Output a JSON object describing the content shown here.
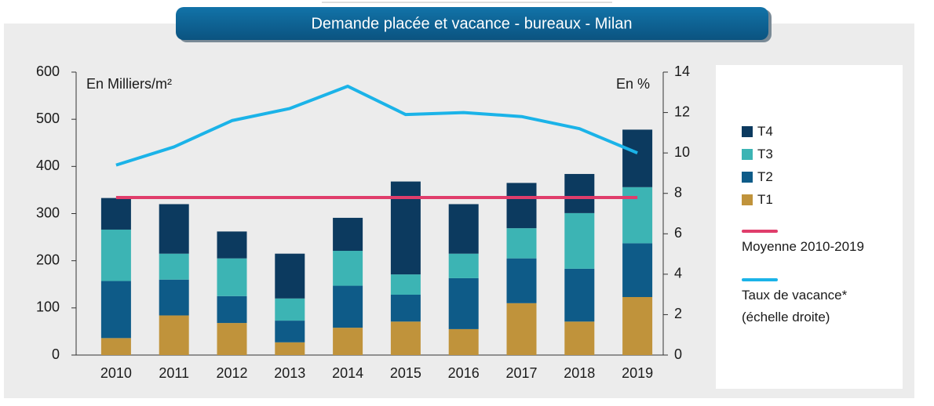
{
  "chart_data": {
    "type": "bar",
    "stacked": true,
    "title": "Demande placée et vacance - bureaux - Milan",
    "y_label": "En Milliers/m²",
    "y2_label": "En %",
    "categories": [
      "2010",
      "2011",
      "2012",
      "2013",
      "2014",
      "2015",
      "2016",
      "2017",
      "2018",
      "2019"
    ],
    "series": [
      {
        "name": "T1",
        "color": "#c0933b",
        "values": [
          36,
          84,
          68,
          27,
          58,
          71,
          55,
          110,
          71,
          123
        ]
      },
      {
        "name": "T2",
        "color": "#0e5b88",
        "values": [
          121,
          76,
          57,
          46,
          89,
          57,
          108,
          95,
          112,
          114
        ]
      },
      {
        "name": "T3",
        "color": "#3cb4b4",
        "values": [
          109,
          55,
          80,
          47,
          74,
          43,
          52,
          64,
          118,
          119
        ]
      },
      {
        "name": "T4",
        "color": "#0c3a5f",
        "values": [
          67,
          105,
          57,
          95,
          70,
          197,
          105,
          96,
          83,
          122
        ]
      },
      {
        "name": "Moyenne 2010-2019",
        "type": "line",
        "color": "#e03d6b",
        "values": [
          334,
          334,
          334,
          334,
          334,
          334,
          334,
          334,
          334,
          334
        ]
      },
      {
        "name": "Taux de vacance* (échelle droite)",
        "type": "line",
        "axis": "y2",
        "color": "#1bb3e8",
        "values": [
          9.4,
          10.3,
          11.6,
          12.2,
          13.3,
          11.9,
          12.0,
          11.8,
          11.2,
          10.0
        ]
      }
    ],
    "ylim": [
      0,
      600
    ],
    "yticks": [
      0,
      100,
      200,
      300,
      400,
      500,
      600
    ],
    "y2lim": [
      0,
      14
    ],
    "y2ticks": [
      0,
      2,
      4,
      6,
      8,
      10,
      12,
      14
    ],
    "grid": false,
    "legend": "right"
  }
}
